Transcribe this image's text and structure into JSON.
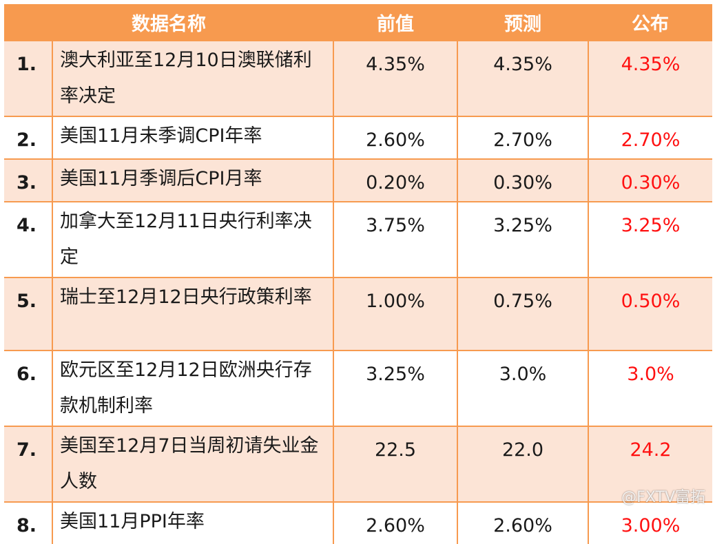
{
  "table": {
    "headers": [
      "数据名称",
      "前值",
      "预测",
      "公布"
    ],
    "rows": [
      {
        "num": "1.",
        "name": "澳大利亚至12月10日澳联储利率决定",
        "prev": "4.35%",
        "forecast": "4.35%",
        "actual": "4.35%"
      },
      {
        "num": "2.",
        "name": "美国11月未季调CPI年率",
        "prev": "2.60%",
        "forecast": "2.70%",
        "actual": "2.70%"
      },
      {
        "num": "3.",
        "name": "美国11月季调后CPI月率",
        "prev": "0.20%",
        "forecast": "0.30%",
        "actual": "0.30%"
      },
      {
        "num": "4.",
        "name": "加拿大至12月11日央行利率决定",
        "prev": "3.75%",
        "forecast": "3.25%",
        "actual": "3.25%"
      },
      {
        "num": "5.",
        "name": "瑞士至12月12日央行政策利率",
        "prev": "1.00%",
        "forecast": "0.75%",
        "actual": "0.50%"
      },
      {
        "num": "6.",
        "name": "欧元区至12月12日欧洲央行存款机制利率",
        "prev": "3.25%",
        "forecast": "3.0%",
        "actual": "3.0%"
      },
      {
        "num": "7.",
        "name": "美国至12月7日当周初请失业金人数",
        "prev": "22.5",
        "forecast": "22.0",
        "actual": "24.2"
      },
      {
        "num": "8.",
        "name": "美国11月PPI年率",
        "prev": "2.60%",
        "forecast": "2.60%",
        "actual": "3.00%"
      }
    ]
  },
  "watermark": {
    "text": "@FXTV富拓"
  },
  "colors": {
    "header_bg": "#f79a4f",
    "odd_row_bg": "#fce4d6",
    "actual_text": "#ff1010"
  }
}
